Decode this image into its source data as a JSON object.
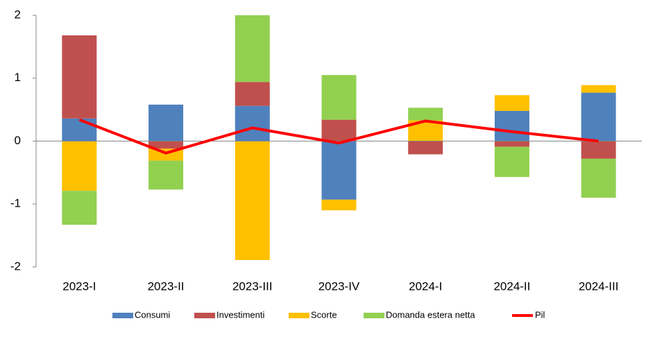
{
  "chart_data": {
    "type": "stacked-bar",
    "categories": [
      "2023-I",
      "2023-II",
      "2023-III",
      "2023-IV",
      "2024-I",
      "2024-II",
      "2024-III"
    ],
    "series": [
      {
        "name": "Consumi",
        "color": "#4f81bd",
        "values": [
          0.36,
          0.58,
          0.56,
          -0.93,
          0,
          0.48,
          0.77
        ]
      },
      {
        "name": "Investimenti",
        "color": "#c0504d",
        "values": [
          1.32,
          -0.12,
          0.38,
          0.34,
          -0.21,
          -0.09,
          -0.28
        ]
      },
      {
        "name": "Scorte",
        "color": "#ffc000",
        "values": [
          -0.79,
          -0.19,
          -1.89,
          -0.17,
          0.33,
          0.25,
          0.12
        ]
      },
      {
        "name": "Domanda estera netta",
        "color": "#92d050",
        "values": [
          -0.54,
          -0.46,
          1.06,
          0.71,
          0.2,
          -0.48,
          -0.62
        ]
      }
    ],
    "line": {
      "name": "Pil",
      "color": "#ff0000",
      "values": [
        0.34,
        -0.19,
        0.21,
        -0.03,
        0.32,
        0.15,
        0.0
      ]
    },
    "ylim": [
      -2,
      2
    ],
    "yticks": [
      -2,
      -1,
      0,
      1,
      2
    ]
  }
}
